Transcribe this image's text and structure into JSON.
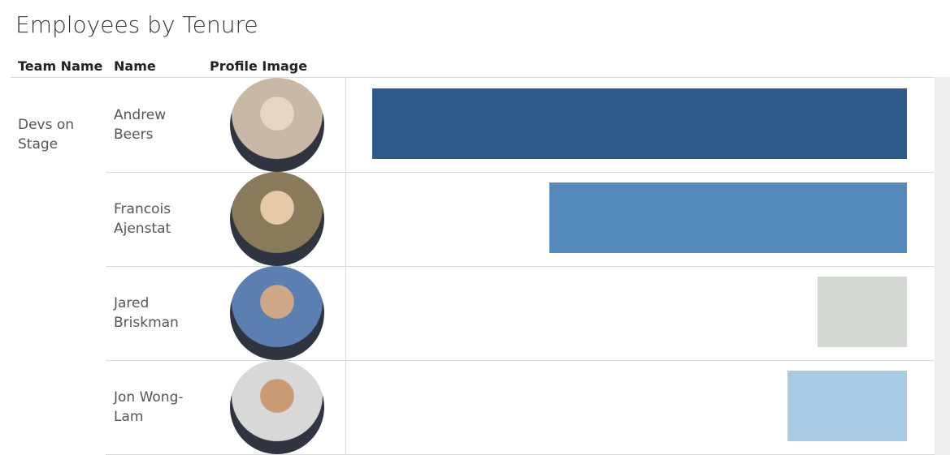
{
  "chart_data": {
    "type": "bar",
    "title": "Employees by Tenure",
    "columns": [
      "Team Name",
      "Name",
      "Profile Image"
    ],
    "team": "Devs on Stage",
    "categories": [
      "Andrew Beers",
      "Francois Ajenstat",
      "Jared Briskman",
      "Jon Wong-Lam"
    ],
    "values": [
      6.68,
      4.46,
      1.12,
      1.49
    ],
    "colors": [
      "#2e5b8a",
      "#5589bb",
      "#d3d8d3",
      "#a7cbe3"
    ],
    "xlim": [
      0,
      7
    ],
    "x_reversed": true
  }
}
